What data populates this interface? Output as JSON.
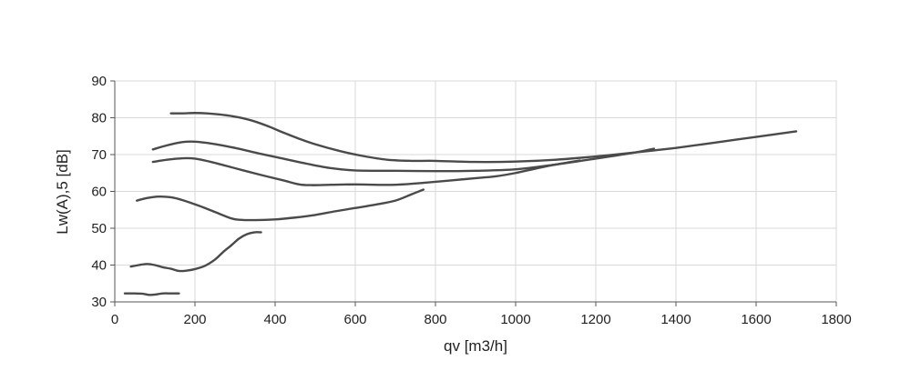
{
  "chart_data": {
    "type": "line",
    "title": "",
    "xlabel": "qv [m3/h]",
    "ylabel": "Lw(A),5 [dB]",
    "xlim": [
      0,
      1800
    ],
    "ylim": [
      30,
      90
    ],
    "xticks": [
      0,
      200,
      400,
      600,
      800,
      1000,
      1200,
      1400,
      1600,
      1800
    ],
    "yticks": [
      30,
      40,
      50,
      60,
      70,
      80,
      90
    ],
    "grid": true,
    "legend": "none",
    "line_color": "#4a4a4a",
    "series": [
      {
        "x": [
          140,
          170,
          200,
          230,
          260,
          300,
          340,
          380,
          420,
          460,
          500,
          560,
          620,
          680,
          740,
          800,
          900,
          1000,
          1100,
          1200,
          1300,
          1350,
          1400,
          1500,
          1600,
          1700
        ],
        "y": [
          81.2,
          81.2,
          81.3,
          81.2,
          80.9,
          80.3,
          79.3,
          77.8,
          76.0,
          74.3,
          72.8,
          71.0,
          69.6,
          68.6,
          68.3,
          68.3,
          68.0,
          68.1,
          68.6,
          69.5,
          70.6,
          71.2,
          71.8,
          73.3,
          74.8,
          76.3
        ]
      },
      {
        "x": [
          95,
          130,
          170,
          200,
          240,
          300,
          360,
          420,
          480,
          540,
          600,
          700,
          800,
          900,
          1000,
          1100,
          1200,
          1300,
          1345
        ],
        "y": [
          71.4,
          72.5,
          73.4,
          73.5,
          73.0,
          71.8,
          70.3,
          68.9,
          67.5,
          66.3,
          65.7,
          65.6,
          65.5,
          65.6,
          66.0,
          67.3,
          68.9,
          70.6,
          71.6
        ]
      },
      {
        "x": [
          95,
          130,
          170,
          200,
          240,
          300,
          360,
          420,
          460,
          490,
          540,
          600,
          700,
          800,
          900,
          950,
          1000,
          1050,
          1100,
          1160
        ],
        "y": [
          68.0,
          68.6,
          69.0,
          68.9,
          68.0,
          66.3,
          64.6,
          63.0,
          61.9,
          61.7,
          61.8,
          61.9,
          61.8,
          62.6,
          63.6,
          64.1,
          65.0,
          66.2,
          67.3,
          68.4
        ]
      },
      {
        "x": [
          55,
          80,
          110,
          140,
          170,
          210,
          250,
          290,
          310,
          350,
          400,
          450,
          500,
          550,
          600,
          650,
          700,
          740,
          770
        ],
        "y": [
          57.5,
          58.2,
          58.6,
          58.4,
          57.6,
          56.1,
          54.4,
          52.7,
          52.3,
          52.2,
          52.4,
          52.9,
          53.6,
          54.6,
          55.5,
          56.4,
          57.5,
          59.2,
          60.5
        ]
      },
      {
        "x": [
          40,
          60,
          80,
          100,
          120,
          140,
          160,
          180,
          200,
          225,
          250,
          270,
          290,
          310,
          330,
          350,
          365
        ],
        "y": [
          39.6,
          40.0,
          40.3,
          40.0,
          39.4,
          39.0,
          38.4,
          38.5,
          38.9,
          39.8,
          41.5,
          43.5,
          45.3,
          47.2,
          48.4,
          48.9,
          48.9
        ]
      },
      {
        "x": [
          25,
          50,
          70,
          85,
          100,
          120,
          140,
          160
        ],
        "y": [
          32.3,
          32.3,
          32.2,
          31.9,
          32.0,
          32.3,
          32.3,
          32.3
        ]
      }
    ]
  }
}
